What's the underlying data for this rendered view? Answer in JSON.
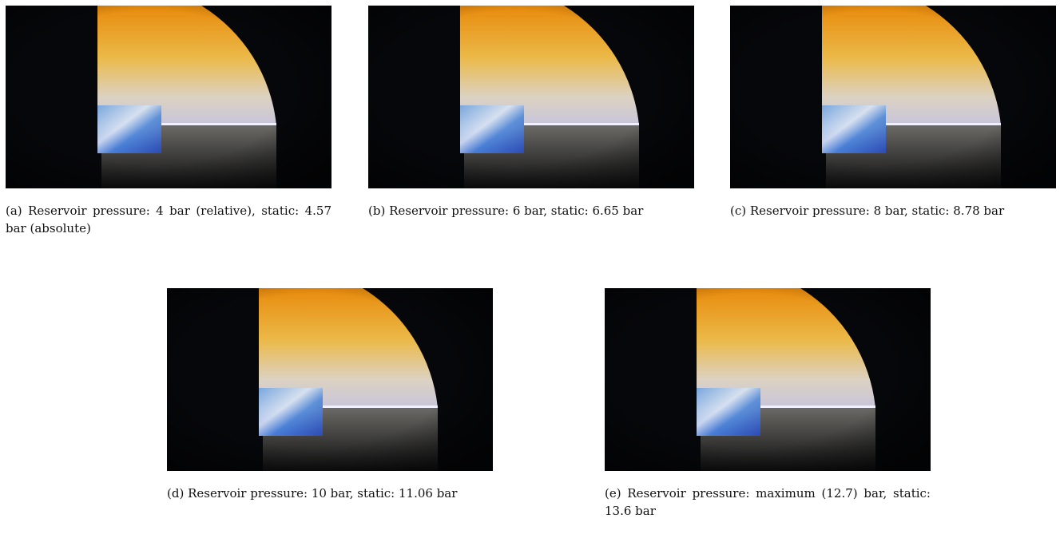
{
  "figures": [
    {
      "label": "(a)",
      "caption": "Reservoir pressure: 4 bar (relative), static: 4.57 bar (absolute)"
    },
    {
      "label": "(b)",
      "caption": "Reservoir pressure: 6 bar, static: 6.65 bar"
    },
    {
      "label": "(c)",
      "caption": "Reservoir pressure: 8 bar, static: 8.78 bar"
    },
    {
      "label": "(d)",
      "caption": "Reservoir pressure: 10 bar, static: 11.06 bar"
    },
    {
      "label": "(e)",
      "caption": "Reservoir pressure: maximum (12.7) bar, static: 13.6 bar"
    }
  ]
}
